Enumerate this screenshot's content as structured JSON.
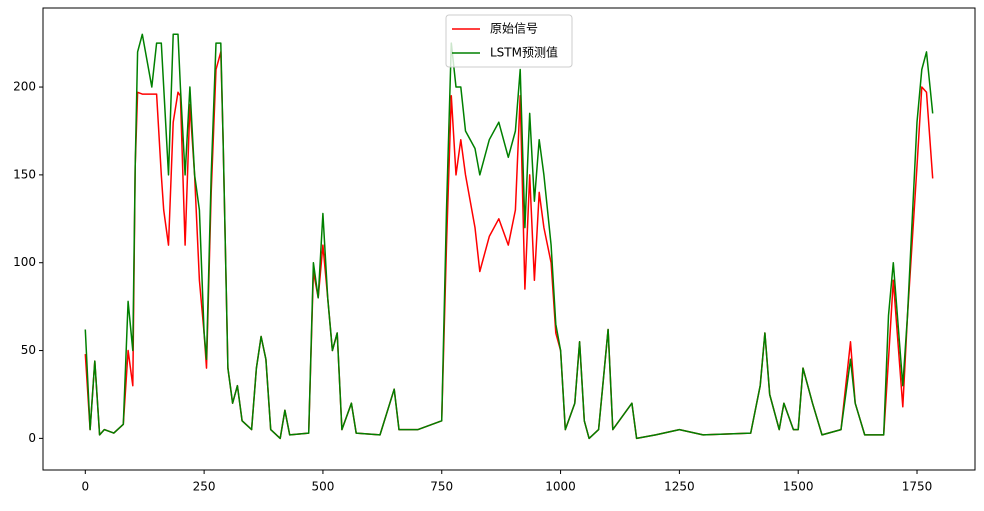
{
  "chart_data": {
    "type": "line",
    "x": [
      0,
      10,
      20,
      30,
      40,
      60,
      80,
      90,
      100,
      105,
      110,
      120,
      140,
      150,
      160,
      165,
      175,
      185,
      195,
      200,
      210,
      220,
      230,
      240,
      250,
      255,
      265,
      275,
      285,
      290,
      300,
      310,
      320,
      330,
      350,
      360,
      370,
      380,
      390,
      410,
      420,
      430,
      470,
      480,
      490,
      500,
      510,
      520,
      530,
      540,
      560,
      570,
      620,
      650,
      660,
      700,
      750,
      760,
      770,
      780,
      790,
      800,
      820,
      830,
      850,
      870,
      890,
      905,
      915,
      925,
      935,
      945,
      955,
      965,
      980,
      990,
      1000,
      1010,
      1030,
      1040,
      1050,
      1060,
      1080,
      1100,
      1110,
      1150,
      1160,
      1200,
      1250,
      1300,
      1400,
      1420,
      1430,
      1440,
      1460,
      1470,
      1490,
      1500,
      1510,
      1530,
      1550,
      1590,
      1610,
      1620,
      1640,
      1680,
      1690,
      1700,
      1720,
      1730,
      1750,
      1760,
      1770,
      1783
    ],
    "series": [
      {
        "name": "原始信号",
        "color": "#ff0000",
        "values": [
          48,
          5,
          44,
          2,
          5,
          3,
          8,
          50,
          30,
          155,
          197,
          196,
          196,
          196,
          150,
          130,
          110,
          180,
          197,
          195,
          110,
          190,
          150,
          90,
          60,
          40,
          140,
          210,
          220,
          170,
          40,
          20,
          30,
          10,
          5,
          40,
          58,
          45,
          5,
          0,
          16,
          2,
          3,
          95,
          80,
          110,
          80,
          50,
          60,
          5,
          20,
          3,
          2,
          28,
          5,
          5,
          10,
          110,
          195,
          150,
          170,
          150,
          120,
          95,
          115,
          125,
          110,
          130,
          195,
          85,
          150,
          90,
          140,
          120,
          100,
          60,
          50,
          5,
          20,
          55,
          10,
          0,
          5,
          62,
          5,
          20,
          0,
          2,
          5,
          2,
          3,
          30,
          60,
          25,
          5,
          20,
          5,
          5,
          40,
          20,
          2,
          5,
          55,
          20,
          2,
          2,
          45,
          90,
          18,
          70,
          155,
          200,
          197,
          148
        ]
      },
      {
        "name": "LSTM预测值",
        "color": "#008000",
        "values": [
          62,
          5,
          44,
          2,
          5,
          3,
          8,
          78,
          50,
          155,
          220,
          230,
          200,
          225,
          225,
          200,
          150,
          230,
          230,
          200,
          150,
          200,
          150,
          130,
          60,
          45,
          150,
          225,
          225,
          170,
          40,
          20,
          30,
          10,
          5,
          40,
          58,
          45,
          5,
          0,
          16,
          2,
          3,
          100,
          80,
          128,
          80,
          50,
          60,
          5,
          20,
          3,
          2,
          28,
          5,
          5,
          10,
          130,
          225,
          200,
          200,
          175,
          165,
          150,
          170,
          180,
          160,
          175,
          210,
          120,
          185,
          135,
          170,
          150,
          110,
          65,
          50,
          5,
          20,
          55,
          10,
          0,
          5,
          62,
          5,
          20,
          0,
          2,
          5,
          2,
          3,
          30,
          60,
          25,
          5,
          20,
          5,
          5,
          40,
          20,
          2,
          5,
          45,
          20,
          2,
          2,
          70,
          100,
          30,
          70,
          180,
          210,
          220,
          185
        ]
      }
    ],
    "xlim": [
      -89,
      1872
    ],
    "ylim": [
      -18,
      245
    ],
    "xticks": [
      0,
      250,
      500,
      750,
      1000,
      1250,
      1500,
      1750
    ],
    "yticks": [
      0,
      50,
      100,
      150,
      200
    ],
    "legend": "upper center"
  }
}
